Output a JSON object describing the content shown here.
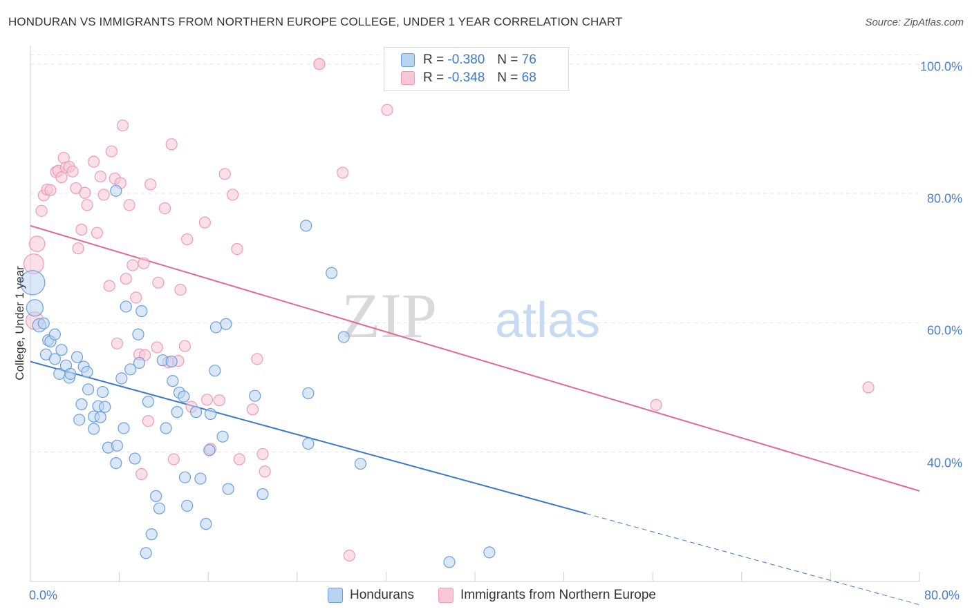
{
  "header": {
    "title": "HONDURAN VS IMMIGRANTS FROM NORTHERN EUROPE COLLEGE, UNDER 1 YEAR CORRELATION CHART",
    "source": "Source: ZipAtlas.com"
  },
  "watermark": {
    "zip": "ZIP",
    "atlas": "atlas"
  },
  "legend": {
    "r_label": "R =",
    "n_label": "N =",
    "series": [
      {
        "r": "-0.380",
        "n": "76"
      },
      {
        "r": "-0.348",
        "n": "68"
      }
    ]
  },
  "colors": {
    "blue": "#3a78c8",
    "blue_fill": "#b9d3f2",
    "blue_stroke": "#6a9fdc",
    "pink": "#e06a94",
    "pink_fill": "#f8c6d6",
    "pink_stroke": "#ee9ab5",
    "tick_text": "#4a7ec9",
    "grid": "#e2e2e2"
  },
  "chart_data": {
    "type": "scatter",
    "title": "HONDURAN VS IMMIGRANTS FROM NORTHERN EUROPE COLLEGE, UNDER 1 YEAR CORRELATION CHART",
    "xlabel": "",
    "ylabel": "College, Under 1 year",
    "xlim": [
      0,
      80
    ],
    "ylim": [
      20,
      102
    ],
    "x_tick_labels": [
      "0.0%",
      "80.0%"
    ],
    "y_ticks": [
      40,
      60,
      80,
      100
    ],
    "y_tick_labels": [
      "40.0%",
      "60.0%",
      "80.0%",
      "100.0%"
    ],
    "grid": true,
    "legend_position": "top-center",
    "series": [
      {
        "name": "Hondurans",
        "r": -0.38,
        "n": 76,
        "trend": {
          "x": [
            0,
            50
          ],
          "y": [
            54.0,
            30.5
          ],
          "extend_dashed_to_x": 80
        },
        "points": [
          [
            0.2,
            66.2,
            2.2
          ],
          [
            0.4,
            62.3,
            1.5
          ],
          [
            0.8,
            59.6,
            1.2
          ],
          [
            1.2,
            59.9,
            1
          ],
          [
            1.4,
            55.1,
            1
          ],
          [
            1.6,
            57.3,
            1
          ],
          [
            1.8,
            57.1,
            1
          ],
          [
            2.2,
            58.2,
            1
          ],
          [
            2.2,
            54.4,
            1
          ],
          [
            2.8,
            55.8,
            1
          ],
          [
            2.6,
            52.1,
            1
          ],
          [
            3.2,
            53.4,
            1
          ],
          [
            3.5,
            51.5,
            1
          ],
          [
            3.6,
            52.1,
            1
          ],
          [
            4.2,
            54.7,
            1
          ],
          [
            4.8,
            53.2,
            1
          ],
          [
            5.1,
            52.4,
            1
          ],
          [
            5.2,
            49.7,
            1
          ],
          [
            4.6,
            47.4,
            1
          ],
          [
            4.4,
            45.0,
            1
          ],
          [
            5.7,
            43.6,
            1
          ],
          [
            5.7,
            45.5,
            1
          ],
          [
            6.1,
            47.1,
            1
          ],
          [
            6.3,
            45.4,
            1
          ],
          [
            6.5,
            49.3,
            1
          ],
          [
            6.7,
            47.0,
            1
          ],
          [
            7.0,
            40.7,
            1
          ],
          [
            7.7,
            38.3,
            1
          ],
          [
            8.4,
            43.7,
            1
          ],
          [
            8.2,
            51.4,
            1
          ],
          [
            7.8,
            41.0,
            1
          ],
          [
            8.6,
            62.5,
            1
          ],
          [
            9.0,
            52.8,
            1
          ],
          [
            9.4,
            39.0,
            1
          ],
          [
            9.7,
            58.2,
            1
          ],
          [
            9.8,
            53.8,
            1
          ],
          [
            10.0,
            61.8,
            1
          ],
          [
            10.6,
            47.8,
            1
          ],
          [
            11.3,
            33.2,
            1
          ],
          [
            11.6,
            31.3,
            1
          ],
          [
            12.2,
            43.7,
            1
          ],
          [
            11.9,
            54.2,
            1
          ],
          [
            12.7,
            54.0,
            1
          ],
          [
            12.8,
            51.0,
            1
          ],
          [
            13.2,
            46.2,
            1
          ],
          [
            13.4,
            49.2,
            1
          ],
          [
            13.8,
            48.6,
            1
          ],
          [
            13.9,
            36.1,
            1
          ],
          [
            14.1,
            31.7,
            1
          ],
          [
            14.9,
            46.2,
            1
          ],
          [
            15.3,
            35.9,
            1
          ],
          [
            15.8,
            28.9,
            1
          ],
          [
            16.1,
            40.3,
            1
          ],
          [
            16.2,
            45.9,
            1
          ],
          [
            16.6,
            52.6,
            1
          ],
          [
            16.7,
            59.3,
            1
          ],
          [
            17.3,
            42.4,
            1
          ],
          [
            17.6,
            59.8,
            1
          ],
          [
            17.8,
            34.3,
            1
          ],
          [
            20.2,
            48.7,
            1
          ],
          [
            20.9,
            33.5,
            1
          ],
          [
            10.9,
            27.3,
            1
          ],
          [
            10.4,
            24.4,
            1
          ],
          [
            7.7,
            80.4,
            1
          ],
          [
            25.0,
            49.1,
            1
          ],
          [
            24.8,
            75.0,
            1
          ],
          [
            25.0,
            41.3,
            1
          ],
          [
            27.1,
            67.7,
            1
          ],
          [
            28.2,
            57.8,
            1
          ],
          [
            29.7,
            38.2,
            1
          ],
          [
            41.3,
            24.5,
            1
          ],
          [
            37.7,
            23.0,
            1
          ]
        ]
      },
      {
        "name": "Immigrants from Northern Europe",
        "r": -0.348,
        "n": 68,
        "trend": {
          "x": [
            0,
            80
          ],
          "y": [
            75.0,
            34.0
          ]
        },
        "points": [
          [
            0.3,
            69.1,
            1.8
          ],
          [
            0.6,
            72.2,
            1.4
          ],
          [
            0.4,
            60.3,
            1.6
          ],
          [
            1.0,
            77.3,
            1
          ],
          [
            1.2,
            79.7,
            1
          ],
          [
            1.5,
            80.6,
            1
          ],
          [
            1.8,
            80.5,
            1
          ],
          [
            2.3,
            83.3,
            1
          ],
          [
            2.5,
            83.5,
            1
          ],
          [
            2.8,
            82.5,
            1
          ],
          [
            3.0,
            85.5,
            1
          ],
          [
            3.2,
            84.0,
            1
          ],
          [
            3.5,
            84.1,
            1
          ],
          [
            3.8,
            83.4,
            1
          ],
          [
            4.1,
            80.8,
            1
          ],
          [
            4.3,
            71.5,
            1
          ],
          [
            4.6,
            74.4,
            1
          ],
          [
            4.9,
            80.1,
            1
          ],
          [
            5.1,
            78.2,
            1
          ],
          [
            5.7,
            84.9,
            1
          ],
          [
            6.0,
            73.9,
            1
          ],
          [
            6.3,
            82.6,
            1
          ],
          [
            6.6,
            79.8,
            1
          ],
          [
            7.1,
            65.7,
            1
          ],
          [
            7.3,
            86.5,
            1
          ],
          [
            7.6,
            82.3,
            1
          ],
          [
            7.8,
            56.8,
            1
          ],
          [
            8.1,
            81.6,
            1
          ],
          [
            8.3,
            90.5,
            1
          ],
          [
            8.6,
            66.8,
            1
          ],
          [
            8.9,
            78.2,
            1
          ],
          [
            9.2,
            68.9,
            1
          ],
          [
            9.5,
            63.9,
            1
          ],
          [
            9.8,
            55.1,
            1
          ],
          [
            10.0,
            36.6,
            1
          ],
          [
            10.2,
            69.2,
            1
          ],
          [
            10.3,
            55.0,
            1
          ],
          [
            10.6,
            44.8,
            1
          ],
          [
            10.8,
            81.4,
            1
          ],
          [
            11.4,
            56.2,
            1
          ],
          [
            11.5,
            66.2,
            1
          ],
          [
            12.1,
            77.7,
            1
          ],
          [
            12.4,
            53.9,
            1
          ],
          [
            12.7,
            87.6,
            1
          ],
          [
            12.9,
            38.9,
            1
          ],
          [
            13.3,
            54.1,
            1
          ],
          [
            13.5,
            65.1,
            1
          ],
          [
            13.9,
            56.4,
            1
          ],
          [
            14.1,
            72.9,
            1
          ],
          [
            14.5,
            47.0,
            1
          ],
          [
            15.7,
            75.5,
            1
          ],
          [
            15.9,
            48.1,
            1
          ],
          [
            16.2,
            40.5,
            1
          ],
          [
            17.0,
            48.0,
            1
          ],
          [
            17.5,
            83.0,
            1
          ],
          [
            18.2,
            79.8,
            1
          ],
          [
            18.6,
            71.4,
            1
          ],
          [
            18.8,
            38.9,
            1
          ],
          [
            20.0,
            46.6,
            1
          ],
          [
            20.4,
            54.4,
            1
          ],
          [
            20.9,
            39.7,
            1
          ],
          [
            21.1,
            37.0,
            1
          ],
          [
            26.0,
            100.0,
            1
          ],
          [
            26.0,
            100.0,
            1
          ],
          [
            28.1,
            83.2,
            1
          ],
          [
            28.7,
            24.0,
            1
          ],
          [
            32.1,
            92.9,
            1
          ],
          [
            56.3,
            47.3,
            1
          ],
          [
            75.4,
            50.0,
            1
          ]
        ]
      }
    ]
  }
}
